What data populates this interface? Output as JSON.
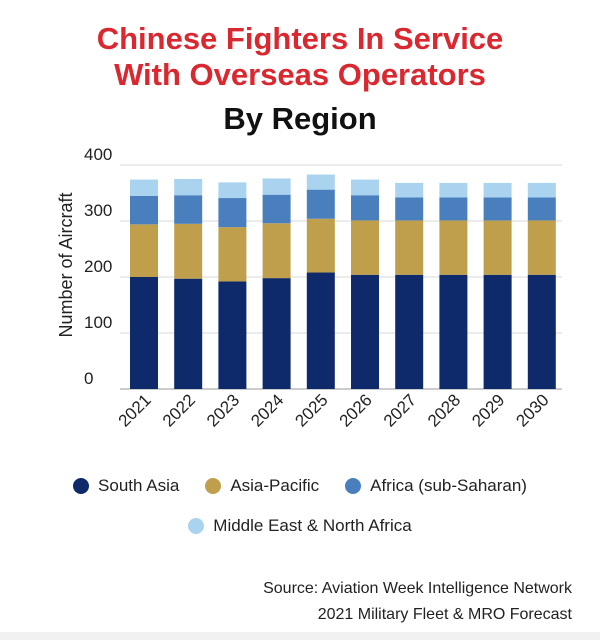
{
  "chart_data": {
    "type": "bar",
    "stacked": true,
    "title_line1": "Chinese Fighters In Service",
    "title_line2": "With Overseas Operators",
    "subtitle": "By Region",
    "xlabel": "",
    "ylabel": "Number of Aircraft",
    "ylim": [
      0,
      400
    ],
    "yticks": [
      0,
      100,
      200,
      300,
      400
    ],
    "grid": true,
    "legend_position": "bottom",
    "categories": [
      "2021",
      "2022",
      "2023",
      "2024",
      "2025",
      "2026",
      "2027",
      "2028",
      "2029",
      "2030"
    ],
    "series": [
      {
        "name": "South Asia",
        "color": "#0e2a6b",
        "values": [
          200,
          197,
          192,
          198,
          208,
          204,
          204,
          204,
          204,
          204
        ]
      },
      {
        "name": "Asia-Pacific",
        "color": "#bf9f4c",
        "values": [
          94,
          98,
          97,
          98,
          96,
          97,
          97,
          97,
          97,
          97
        ]
      },
      {
        "name": "Africa (sub-Saharan)",
        "color": "#4a7fbd",
        "values": [
          51,
          51,
          52,
          51,
          52,
          45,
          41,
          41,
          41,
          41
        ]
      },
      {
        "name": "Middle East & North Africa",
        "color": "#a9d3ee",
        "values": [
          29,
          29,
          28,
          29,
          27,
          28,
          26,
          26,
          26,
          26
        ]
      }
    ],
    "source_line1": "Source: Aviation Week Intelligence Network",
    "source_line2": "2021 Military Fleet & MRO Forecast"
  }
}
